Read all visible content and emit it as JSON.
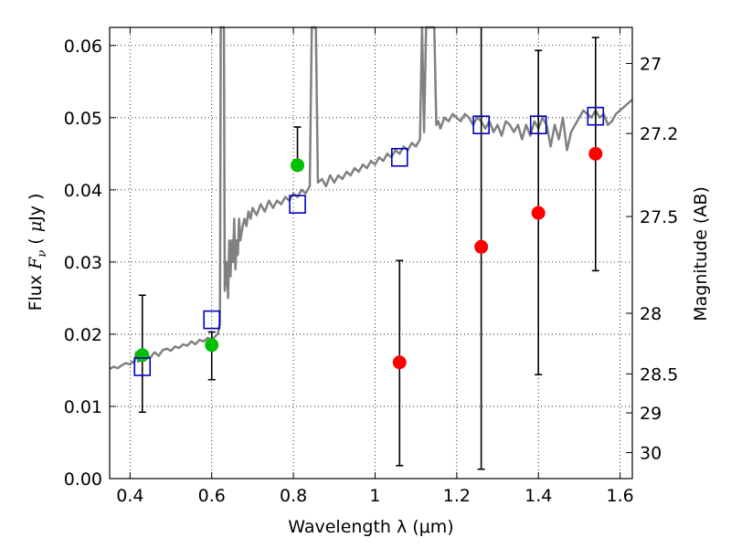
{
  "chart_data": {
    "type": "scatter",
    "title": "",
    "xlabel": "Wavelength  λ (μm)",
    "ylabel": "Flux  F_ν  ( μJy )",
    "ylabel_parts": {
      "pre": "Flux  ",
      "sym": "F",
      "sub": "ν",
      "post": "  ( ",
      "mu": "μ",
      "unit": "Jy )"
    },
    "y2label": "Magnitude (AB)",
    "xlim": [
      0.35,
      1.63
    ],
    "ylim": [
      0.0,
      0.0625
    ],
    "xticks": [
      0.4,
      0.6,
      0.8,
      1.0,
      1.2,
      1.4,
      1.6
    ],
    "xtick_labels": [
      "0.4",
      "0.6",
      "0.8",
      "1",
      "1.2",
      "1.4",
      "1.6"
    ],
    "yticks": [
      0.0,
      0.01,
      0.02,
      0.03,
      0.04,
      0.05,
      0.06
    ],
    "ytick_labels": [
      "0.00",
      "0.01",
      "0.02",
      "0.03",
      "0.04",
      "0.05",
      "0.06"
    ],
    "y2ticks": [
      {
        "label": "27",
        "flux": 0.0575
      },
      {
        "label": "27.2",
        "flux": 0.0478
      },
      {
        "label": "27.5",
        "flux": 0.0363
      },
      {
        "label": "28",
        "flux": 0.0229
      },
      {
        "label": "28.5",
        "flux": 0.0145
      },
      {
        "label": "29",
        "flux": 0.0091
      },
      {
        "label": "30",
        "flux": 0.0036
      }
    ],
    "grid": true,
    "grid_style": "dotted",
    "colors": {
      "spectrum": "#808080",
      "green_points": "#00c000",
      "red_points": "#ff0000",
      "model_squares": "#0000c0",
      "errorbars": "#000000"
    },
    "series": [
      {
        "kind": "line",
        "x": [
          0.35,
          0.36,
          0.37,
          0.38,
          0.39,
          0.4,
          0.405,
          0.41,
          0.415,
          0.42,
          0.43,
          0.44,
          0.45,
          0.46,
          0.47,
          0.48,
          0.49,
          0.5,
          0.51,
          0.52,
          0.53,
          0.54,
          0.55,
          0.56,
          0.57,
          0.58,
          0.59,
          0.6,
          0.61,
          0.615,
          0.62,
          0.622,
          0.625,
          0.627,
          0.63,
          0.632,
          0.635,
          0.637,
          0.64,
          0.643,
          0.646,
          0.649,
          0.652,
          0.655,
          0.658,
          0.661,
          0.664,
          0.667,
          0.67,
          0.673,
          0.676,
          0.68,
          0.685,
          0.69,
          0.695,
          0.7,
          0.71,
          0.72,
          0.73,
          0.74,
          0.75,
          0.76,
          0.77,
          0.78,
          0.79,
          0.8,
          0.81,
          0.82,
          0.83,
          0.84,
          0.845,
          0.848,
          0.851,
          0.855,
          0.86,
          0.87,
          0.88,
          0.89,
          0.9,
          0.91,
          0.92,
          0.93,
          0.94,
          0.95,
          0.96,
          0.97,
          0.98,
          0.99,
          1.0,
          1.01,
          1.02,
          1.03,
          1.04,
          1.05,
          1.06,
          1.07,
          1.08,
          1.09,
          1.1,
          1.11,
          1.115,
          1.12,
          1.125,
          1.13,
          1.135,
          1.14,
          1.145,
          1.15,
          1.155,
          1.16,
          1.17,
          1.18,
          1.19,
          1.2,
          1.21,
          1.22,
          1.23,
          1.24,
          1.25,
          1.26,
          1.27,
          1.28,
          1.29,
          1.3,
          1.31,
          1.32,
          1.33,
          1.34,
          1.35,
          1.36,
          1.37,
          1.38,
          1.39,
          1.4,
          1.41,
          1.42,
          1.43,
          1.44,
          1.45,
          1.46,
          1.47,
          1.48,
          1.49,
          1.5,
          1.51,
          1.52,
          1.53,
          1.54,
          1.55,
          1.56,
          1.57,
          1.58,
          1.59,
          1.6,
          1.61,
          1.62,
          1.63
        ],
        "values": [
          0.0152,
          0.0155,
          0.0153,
          0.0157,
          0.016,
          0.0158,
          0.0162,
          0.016,
          0.0175,
          0.0162,
          0.0165,
          0.017,
          0.0168,
          0.0175,
          0.017,
          0.0178,
          0.018,
          0.0177,
          0.0183,
          0.0181,
          0.0186,
          0.0184,
          0.019,
          0.0186,
          0.0192,
          0.019,
          0.0195,
          0.0192,
          0.0198,
          0.02,
          0.0215,
          0.0625,
          0.0625,
          0.0625,
          0.0625,
          0.026,
          0.028,
          0.03,
          0.025,
          0.033,
          0.028,
          0.033,
          0.03,
          0.036,
          0.029,
          0.033,
          0.031,
          0.036,
          0.033,
          0.034,
          0.035,
          0.036,
          0.035,
          0.037,
          0.036,
          0.0375,
          0.0365,
          0.038,
          0.037,
          0.0385,
          0.0375,
          0.0385,
          0.038,
          0.039,
          0.0385,
          0.0395,
          0.039,
          0.04,
          0.0395,
          0.0405,
          0.0625,
          0.0625,
          0.0625,
          0.0625,
          0.041,
          0.0415,
          0.0405,
          0.042,
          0.041,
          0.042,
          0.0415,
          0.0425,
          0.042,
          0.043,
          0.0425,
          0.0435,
          0.043,
          0.044,
          0.0435,
          0.0445,
          0.044,
          0.045,
          0.0445,
          0.0455,
          0.045,
          0.046,
          0.0455,
          0.0465,
          0.046,
          0.047,
          0.0625,
          0.048,
          0.0625,
          0.0625,
          0.0625,
          0.0625,
          0.0625,
          0.049,
          0.0495,
          0.0485,
          0.05,
          0.0495,
          0.0505,
          0.05,
          0.0495,
          0.0505,
          0.05,
          0.049,
          0.05,
          0.0495,
          0.0485,
          0.0495,
          0.048,
          0.049,
          0.0475,
          0.0495,
          0.049,
          0.048,
          0.049,
          0.047,
          0.049,
          0.0475,
          0.0495,
          0.0485,
          0.05,
          0.049,
          0.046,
          0.049,
          0.047,
          0.05,
          0.0455,
          0.048,
          0.049,
          0.05,
          0.051,
          0.0505,
          0.05,
          0.051,
          0.05,
          0.0505,
          0.049,
          0.0495,
          0.0505,
          0.051,
          0.0515,
          0.052,
          0.0525
        ]
      },
      {
        "kind": "points",
        "marker": "circle",
        "color_key": "green_points",
        "x": [
          0.43,
          0.6,
          0.81
        ],
        "values": [
          0.0171,
          0.0185,
          0.0434
        ],
        "yerr_low": [
          0.0092,
          0.0137,
          null
        ],
        "yerr_high": [
          0.0254,
          0.0203,
          0.0487
        ]
      },
      {
        "kind": "points",
        "marker": "circle",
        "color_key": "red_points",
        "x": [
          1.06,
          1.26,
          1.4,
          1.54
        ],
        "values": [
          0.0161,
          0.0321,
          0.0368,
          0.045
        ],
        "yerr_low": [
          0.0018,
          0.0013,
          0.0144,
          0.0288
        ],
        "yerr_high": [
          0.0302,
          0.0625,
          0.0593,
          0.0611
        ]
      },
      {
        "kind": "points",
        "marker": "square",
        "color_key": "model_squares",
        "x": [
          0.43,
          0.6,
          0.81,
          1.06,
          1.26,
          1.4,
          1.54
        ],
        "values": [
          0.0155,
          0.022,
          0.038,
          0.0445,
          0.049,
          0.049,
          0.0502
        ]
      }
    ]
  }
}
